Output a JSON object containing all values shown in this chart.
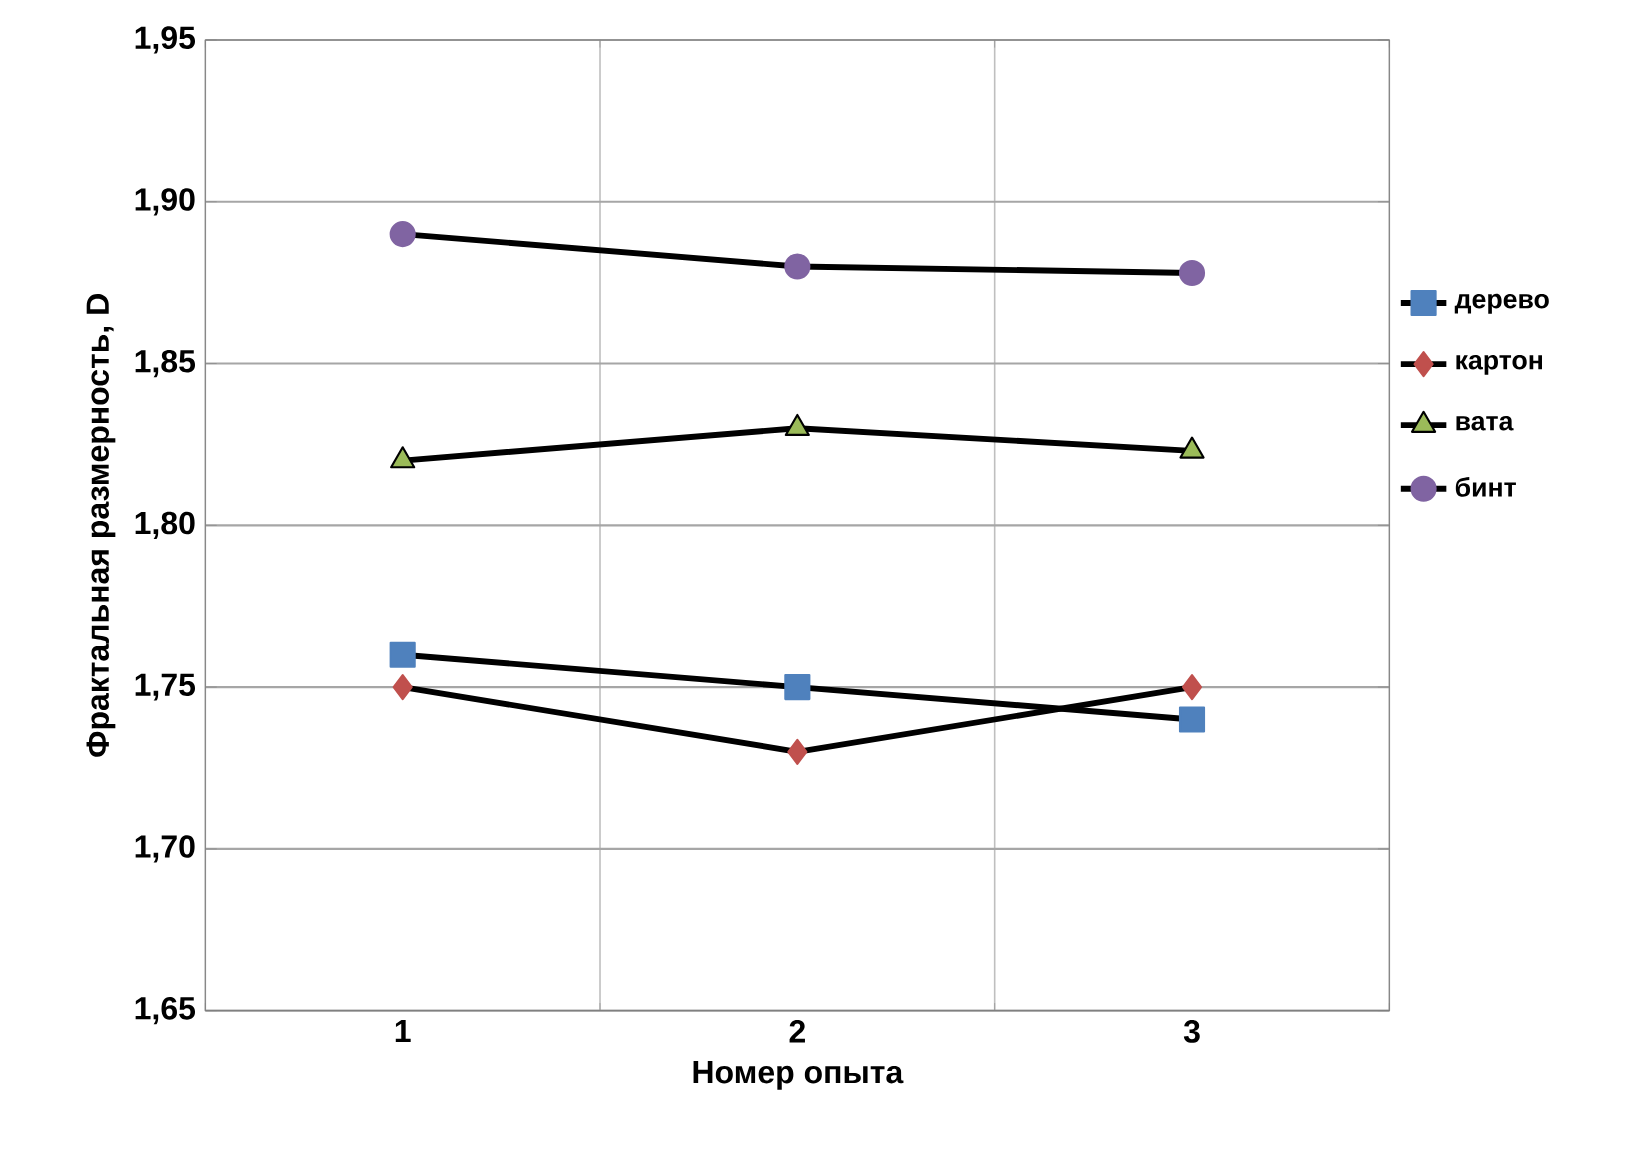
{
  "chart_data": {
    "type": "line",
    "xlabel": "Номер опыта",
    "ylabel": "Фрактальная размерность, D",
    "categories": [
      "1",
      "2",
      "3"
    ],
    "series": [
      {
        "name": "дерево",
        "color": "#4f81bd",
        "marker": "square",
        "values": [
          1.76,
          1.75,
          1.74
        ]
      },
      {
        "name": "картон",
        "color": "#c0504d",
        "marker": "diamond",
        "values": [
          1.75,
          1.73,
          1.75
        ]
      },
      {
        "name": "вата",
        "color": "#9bbb59",
        "marker": "triangle",
        "values": [
          1.82,
          1.83,
          1.823
        ]
      },
      {
        "name": "бинт",
        "color": "#8064a2",
        "marker": "circle",
        "values": [
          1.89,
          1.88,
          1.878
        ]
      }
    ],
    "ylim": [
      1.65,
      1.95
    ],
    "yticks": [
      {
        "value": 1.65,
        "label": "1,65"
      },
      {
        "value": 1.7,
        "label": "1,70"
      },
      {
        "value": 1.75,
        "label": "1,75"
      },
      {
        "value": 1.8,
        "label": "1,80"
      },
      {
        "value": 1.85,
        "label": "1,85"
      },
      {
        "value": 1.9,
        "label": "1,90"
      },
      {
        "value": 1.95,
        "label": "1,95"
      }
    ],
    "grid": true,
    "legend": "right",
    "line_style": "solid"
  }
}
